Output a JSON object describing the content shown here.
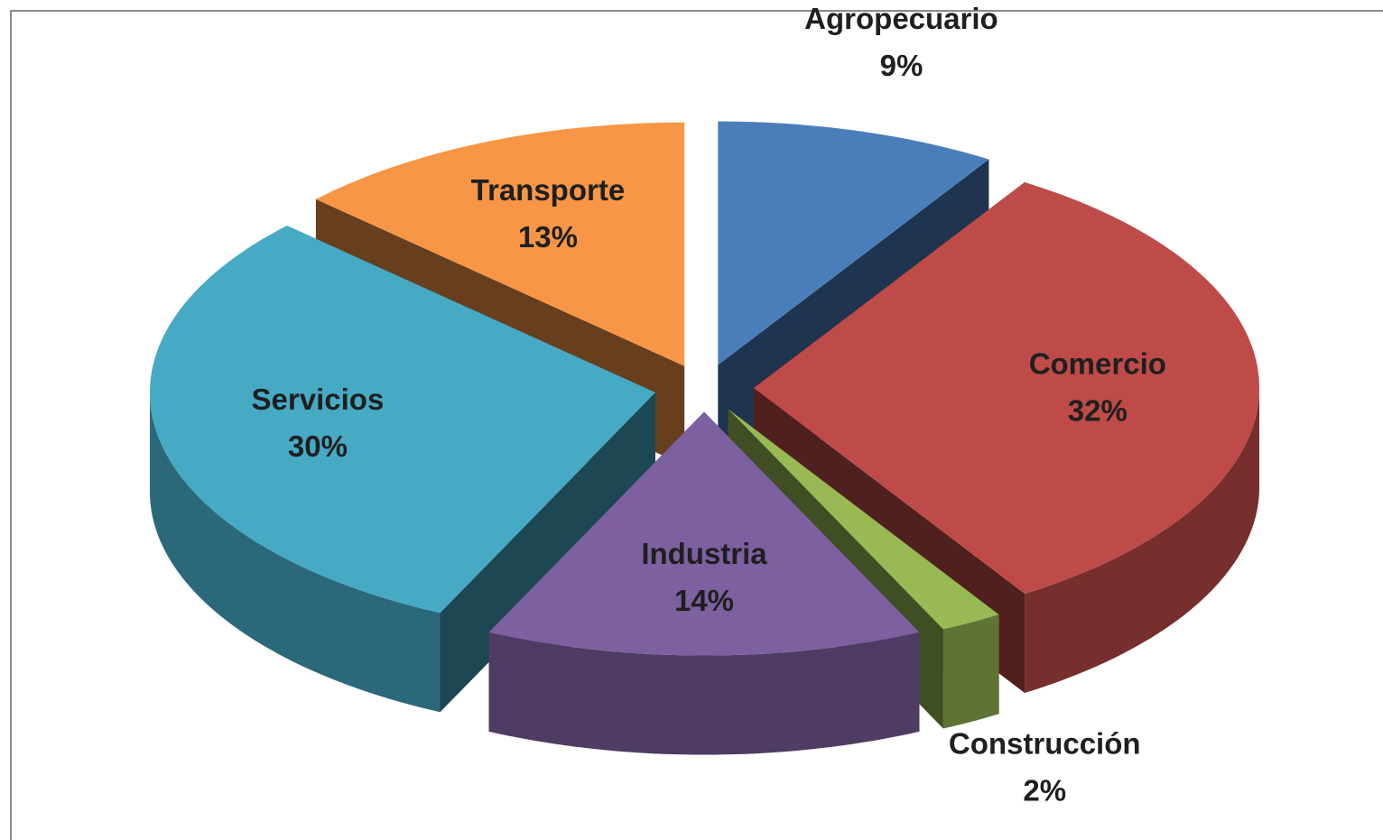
{
  "chart_data": {
    "type": "pie3d",
    "categories": [
      "Agropecuario",
      "Comercio",
      "Construcción",
      "Industria",
      "Servicios",
      "Transporte"
    ],
    "values": [
      9,
      32,
      2,
      14,
      30,
      13
    ],
    "value_labels": [
      "9%",
      "32%",
      "2%",
      "14%",
      "30%",
      "13%"
    ],
    "colors": [
      "#4a7ebb",
      "#be4b48",
      "#98b954",
      "#7d60a0",
      "#46aac5",
      "#f79646"
    ],
    "exploded": true
  }
}
